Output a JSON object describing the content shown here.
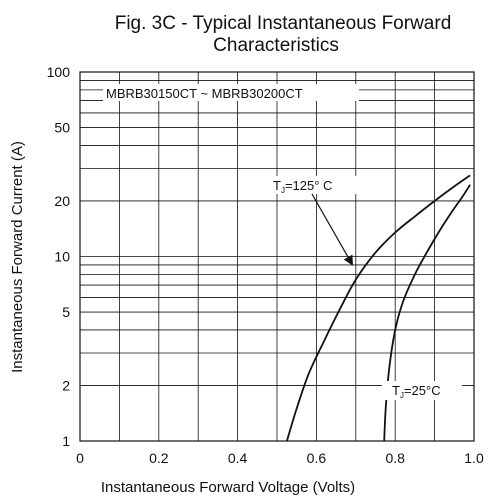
{
  "chart_data": {
    "type": "line",
    "title_line1": "Fig. 3C - Typical Instantaneous Forward",
    "title_line2": "Characteristics",
    "xlabel": "Instantaneous Forward Voltage (Volts)",
    "ylabel": "Instantaneous Forward Current (A)",
    "xlim": [
      0,
      1.0
    ],
    "ylim": [
      1,
      100
    ],
    "yscale": "log",
    "grid": true,
    "x_ticks": [
      {
        "value": 0,
        "label": "0"
      },
      {
        "value": 0.2,
        "label": "0.2"
      },
      {
        "value": 0.4,
        "label": "0.4"
      },
      {
        "value": 0.6,
        "label": "0.6"
      },
      {
        "value": 0.8,
        "label": "0.8"
      },
      {
        "value": 1.0,
        "label": "1.0"
      }
    ],
    "y_ticks": [
      {
        "value": 1,
        "label": "1"
      },
      {
        "value": 2,
        "label": "2"
      },
      {
        "value": 5,
        "label": "5"
      },
      {
        "value": 10,
        "label": "10"
      },
      {
        "value": 20,
        "label": "20"
      },
      {
        "value": 50,
        "label": "50"
      },
      {
        "value": 100,
        "label": "100"
      }
    ],
    "part_label": "MBRB30150CT ~ MBRB30200CT",
    "series": [
      {
        "name_main": "T",
        "name_sub": "J",
        "name_rest": "=125° C",
        "color": "#111111",
        "x": [
          0.525,
          0.55,
          0.58,
          0.62,
          0.66,
          0.7,
          0.75,
          0.8,
          0.85,
          0.9,
          0.95,
          0.99
        ],
        "y": [
          1.0,
          1.5,
          2.3,
          3.5,
          5.2,
          7.5,
          10.5,
          13.5,
          16.5,
          20.0,
          24.0,
          27.5
        ]
      },
      {
        "name_main": "T",
        "name_sub": "J",
        "name_rest": "=25°C",
        "color": "#111111",
        "x": [
          0.772,
          0.776,
          0.785,
          0.8,
          0.82,
          0.85,
          0.88,
          0.91,
          0.94,
          0.97,
          0.99
        ],
        "y": [
          1.0,
          1.5,
          2.5,
          4.0,
          5.7,
          8.0,
          10.5,
          13.5,
          17.0,
          21.0,
          24.5
        ]
      }
    ],
    "colors": {
      "axis": "#111111",
      "grid": "#111111",
      "background": "#ffffff"
    }
  }
}
